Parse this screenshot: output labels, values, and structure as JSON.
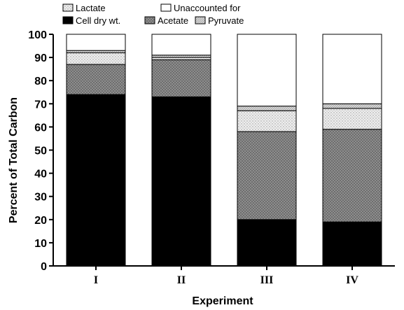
{
  "chart_data": {
    "type": "bar",
    "stacked": true,
    "title": "",
    "xlabel": "Experiment",
    "ylabel": "Percent of Total Carbon",
    "ylim": [
      0,
      100
    ],
    "yticks": [
      0,
      10,
      20,
      30,
      40,
      50,
      60,
      70,
      80,
      90,
      100
    ],
    "categories": [
      "I",
      "II",
      "III",
      "IV"
    ],
    "grid": false,
    "legend_position": "top-left",
    "legend_order": [
      "Lactate",
      "Unaccounted for",
      "Cell dry wt.",
      "Acetate",
      "Pyruvate"
    ],
    "series": [
      {
        "name": "Cell dry wt.",
        "values": [
          74,
          73,
          20,
          19
        ],
        "color": "#000000",
        "pattern": "solid"
      },
      {
        "name": "Acetate",
        "values": [
          13,
          16,
          38,
          40
        ],
        "color": "#9a9a9a",
        "pattern": "crosshatch"
      },
      {
        "name": "Lactate",
        "values": [
          5,
          1,
          9,
          9
        ],
        "color": "#e2e2e2",
        "pattern": "dots"
      },
      {
        "name": "Pyruvate",
        "values": [
          1,
          1,
          2,
          2
        ],
        "color": "#cccccc",
        "pattern": "light-hatch"
      },
      {
        "name": "Unaccounted for",
        "values": [
          7,
          9,
          31,
          30
        ],
        "color": "#ffffff",
        "pattern": "open"
      }
    ]
  }
}
